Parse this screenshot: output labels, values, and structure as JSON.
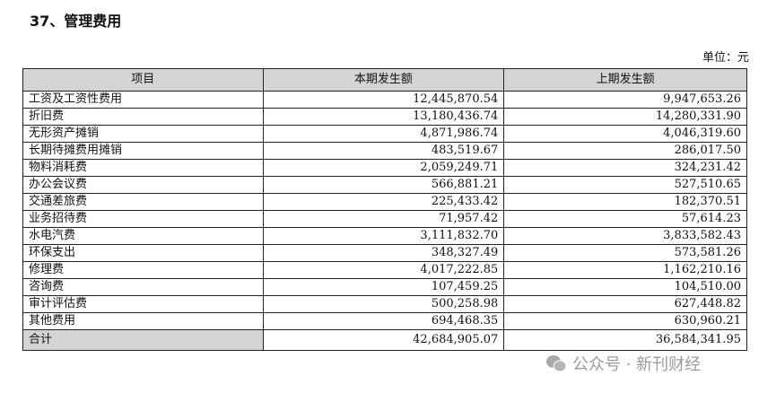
{
  "title": "37、管理费用",
  "unit": "单位：元",
  "table": {
    "headers": [
      "项目",
      "本期发生额",
      "上期发生额"
    ],
    "rows": [
      [
        "工资及工资性费用",
        "12,445,870.54",
        "9,947,653.26"
      ],
      [
        "折旧费",
        "13,180,436.74",
        "14,280,331.90"
      ],
      [
        "无形资产摊销",
        "4,871,986.74",
        "4,046,319.60"
      ],
      [
        "长期待摊费用摊销",
        "483,519.67",
        "286,017.50"
      ],
      [
        "物料消耗费",
        "2,059,249.71",
        "324,231.42"
      ],
      [
        "办公会议费",
        "566,881.21",
        "527,510.65"
      ],
      [
        "交通差旅费",
        "225,433.42",
        "182,370.51"
      ],
      [
        "业务招待费",
        "71,957.42",
        "57,614.23"
      ],
      [
        "水电汽费",
        "3,111,832.70",
        "3,833,582.43"
      ],
      [
        "环保支出",
        "348,327.49",
        "573,581.26"
      ],
      [
        "修理费",
        "4,017,222.85",
        "1,162,210.16"
      ],
      [
        "咨询费",
        "107,459.25",
        "104,510.00"
      ],
      [
        "审计评估费",
        "500,258.98",
        "627,448.82"
      ],
      [
        "其他费用",
        "694,468.35",
        "630,960.21"
      ]
    ],
    "total": [
      "合计",
      "42,684,905.07",
      "36,584,341.95"
    ]
  },
  "watermark": {
    "icon": "wechat-icon",
    "text": "公众号 · 新刊财经"
  }
}
